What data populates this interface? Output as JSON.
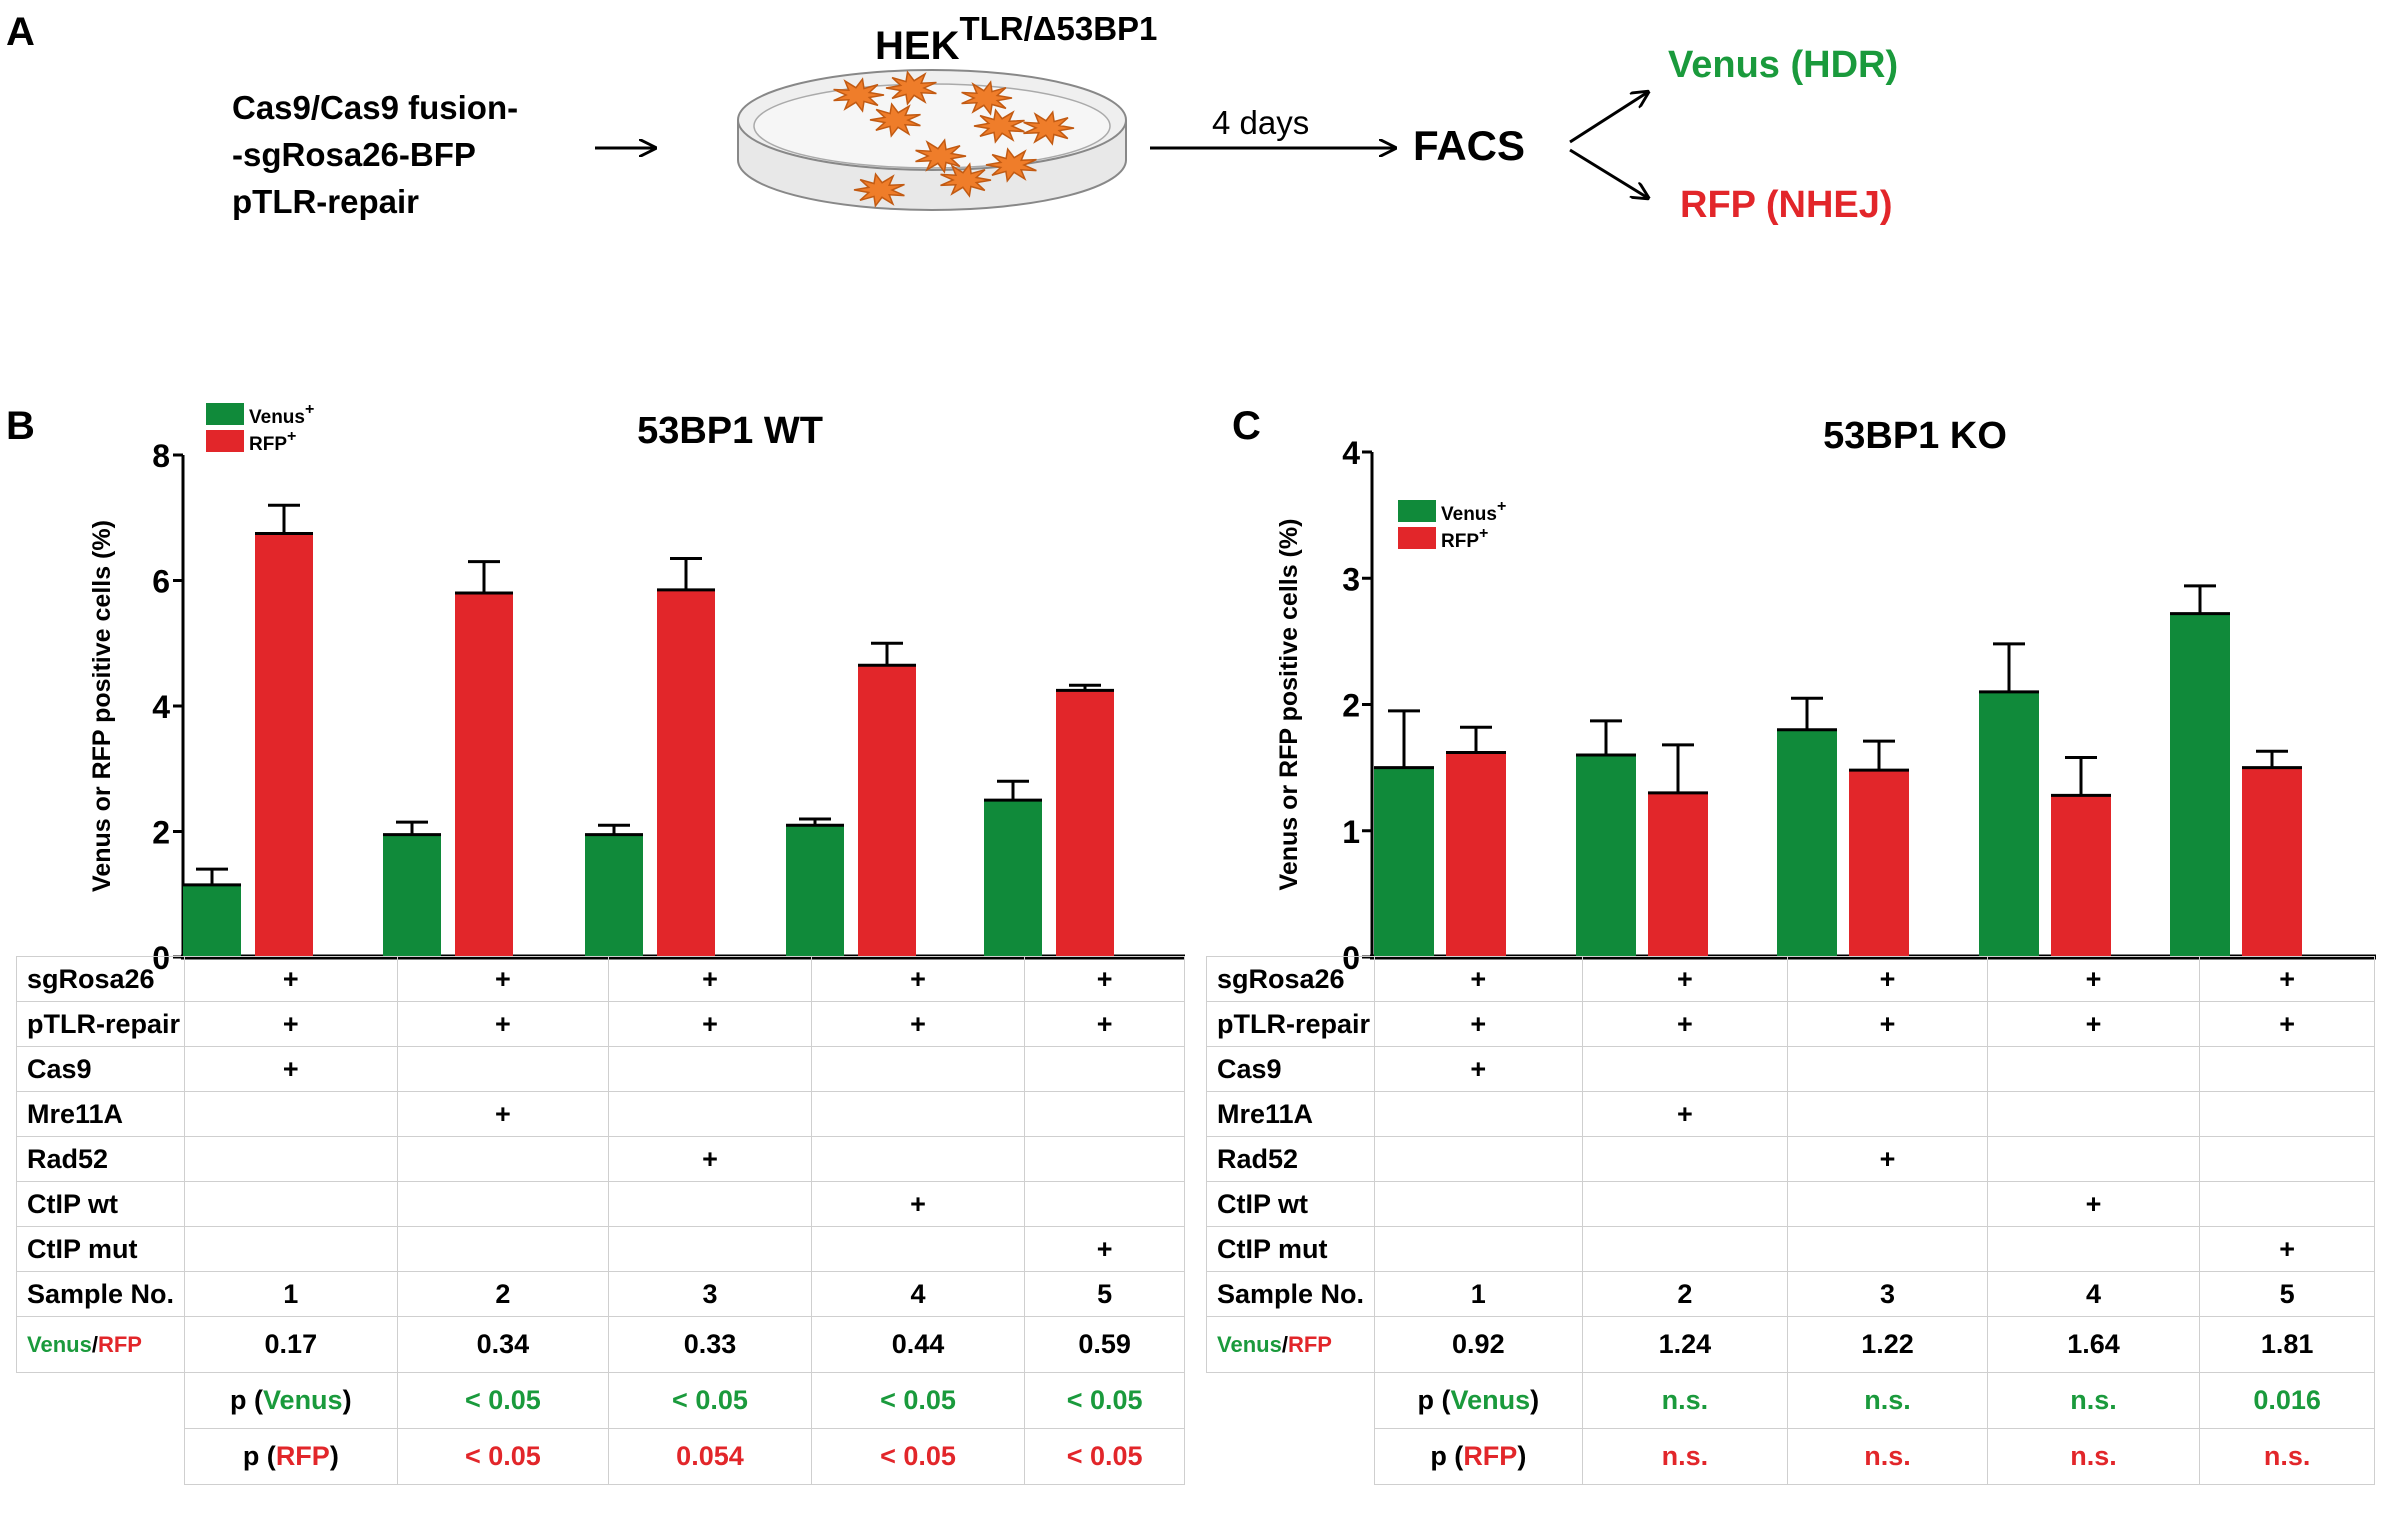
{
  "panel_a": {
    "letter": "A",
    "inputs": [
      "Cas9/Cas9 fusion-",
      "-sgRosa26-BFP",
      "pTLR-repair"
    ],
    "cell_line_base": "HEK",
    "cell_line_super": "TLR/Δ53BP1",
    "incubation": "4 days",
    "assay": "FACS",
    "outcome_hdr": "Venus (HDR)",
    "outcome_nhej": "RFP (NHEJ)"
  },
  "colors": {
    "venus": "#108a3a",
    "rfp": "#e2262a",
    "green_text": "#1a9a3c",
    "red_text": "#e2262a"
  },
  "chart_data": [
    {
      "type": "bar",
      "panel": "B",
      "title": "53BP1 WT",
      "ylabel": "Venus or RFP positive cells (%)",
      "xlabel": "",
      "ylim": [
        0,
        8
      ],
      "yticks": [
        "0",
        "2",
        "4",
        "6",
        "8"
      ],
      "categories": [
        "1",
        "2",
        "3",
        "4",
        "5"
      ],
      "legend": {
        "position": "top-left",
        "entries": [
          {
            "name": "Venus",
            "sup": "+"
          },
          {
            "name": "RFP",
            "sup": "+"
          }
        ]
      },
      "series": [
        {
          "name": "Venus+",
          "values": [
            1.15,
            1.95,
            1.95,
            2.1,
            2.5
          ],
          "errors": [
            0.25,
            0.2,
            0.15,
            0.1,
            0.3
          ]
        },
        {
          "name": "RFP+",
          "values": [
            6.75,
            5.8,
            5.85,
            4.65,
            4.25
          ],
          "errors": [
            0.45,
            0.5,
            0.5,
            0.35,
            0.08
          ]
        }
      ],
      "table": {
        "rows": [
          {
            "label": "sgRosa26",
            "cells": [
              "+",
              "+",
              "+",
              "+",
              "+"
            ]
          },
          {
            "label": "pTLR-repair",
            "cells": [
              "+",
              "+",
              "+",
              "+",
              "+"
            ]
          },
          {
            "label": "Cas9",
            "cells": [
              "+",
              "",
              "",
              "",
              ""
            ]
          },
          {
            "label": "Mre11A",
            "cells": [
              "",
              "+",
              "",
              "",
              ""
            ]
          },
          {
            "label": "Rad52",
            "cells": [
              "",
              "",
              "+",
              "",
              ""
            ]
          },
          {
            "label": "CtIP wt",
            "cells": [
              "",
              "",
              "",
              "+",
              ""
            ]
          },
          {
            "label": "CtIP mut",
            "cells": [
              "",
              "",
              "",
              "",
              "+"
            ]
          },
          {
            "label": "Sample No.",
            "cells": [
              "1",
              "2",
              "3",
              "4",
              "5"
            ]
          }
        ],
        "ratio_label_a": "Venus",
        "ratio_label_sep": "/",
        "ratio_label_b": "RFP",
        "ratio": [
          "0.17",
          "0.34",
          "0.33",
          "0.44",
          "0.59"
        ],
        "p_venus_prefix": "p (",
        "p_venus_name": "Venus",
        "p_venus_suffix": ")",
        "p_venus": [
          "< 0.05",
          "< 0.05",
          "< 0.05",
          "< 0.05"
        ],
        "p_rfp_prefix": "p   (",
        "p_rfp_name": "RFP",
        "p_rfp_suffix": ")",
        "p_rfp": [
          "< 0.05",
          "0.054",
          "< 0.05",
          "< 0.05"
        ]
      }
    },
    {
      "type": "bar",
      "panel": "C",
      "title": "53BP1 KO",
      "ylabel": "Venus or RFP positive cells (%)",
      "xlabel": "",
      "ylim": [
        0,
        4
      ],
      "yticks": [
        "0",
        "1",
        "2",
        "3",
        "4"
      ],
      "categories": [
        "1",
        "2",
        "3",
        "4",
        "5"
      ],
      "legend": {
        "position": "top-left",
        "entries": [
          {
            "name": "Venus",
            "sup": "+"
          },
          {
            "name": "RFP",
            "sup": "+"
          }
        ]
      },
      "series": [
        {
          "name": "Venus+",
          "values": [
            1.5,
            1.6,
            1.8,
            2.1,
            2.72
          ],
          "errors": [
            0.45,
            0.27,
            0.25,
            0.38,
            0.22
          ]
        },
        {
          "name": "RFP+",
          "values": [
            1.62,
            1.3,
            1.48,
            1.28,
            1.5
          ],
          "errors": [
            0.2,
            0.38,
            0.23,
            0.3,
            0.13
          ]
        }
      ],
      "table": {
        "rows": [
          {
            "label": "sgRosa26",
            "cells": [
              "+",
              "+",
              "+",
              "+",
              "+"
            ]
          },
          {
            "label": "pTLR-repair",
            "cells": [
              "+",
              "+",
              "+",
              "+",
              "+"
            ]
          },
          {
            "label": "Cas9",
            "cells": [
              "+",
              "",
              "",
              "",
              ""
            ]
          },
          {
            "label": "Mre11A",
            "cells": [
              "",
              "+",
              "",
              "",
              ""
            ]
          },
          {
            "label": "Rad52",
            "cells": [
              "",
              "",
              "+",
              "",
              ""
            ]
          },
          {
            "label": "CtIP wt",
            "cells": [
              "",
              "",
              "",
              "+",
              ""
            ]
          },
          {
            "label": "CtIP mut",
            "cells": [
              "",
              "",
              "",
              "",
              "+"
            ]
          },
          {
            "label": "Sample No.",
            "cells": [
              "1",
              "2",
              "3",
              "4",
              "5"
            ]
          }
        ],
        "ratio_label_a": "Venus",
        "ratio_label_sep": "/",
        "ratio_label_b": "RFP",
        "ratio": [
          "0.92",
          "1.24",
          "1.22",
          "1.64",
          "1.81"
        ],
        "p_venus_prefix": "p (",
        "p_venus_name": "Venus",
        "p_venus_suffix": ")",
        "p_venus": [
          "n.s.",
          "n.s.",
          "n.s.",
          "0.016"
        ],
        "p_rfp_prefix": "p   (",
        "p_rfp_name": "RFP",
        "p_rfp_suffix": ")",
        "p_rfp": [
          "n.s.",
          "n.s.",
          "n.s.",
          "n.s."
        ]
      }
    }
  ]
}
